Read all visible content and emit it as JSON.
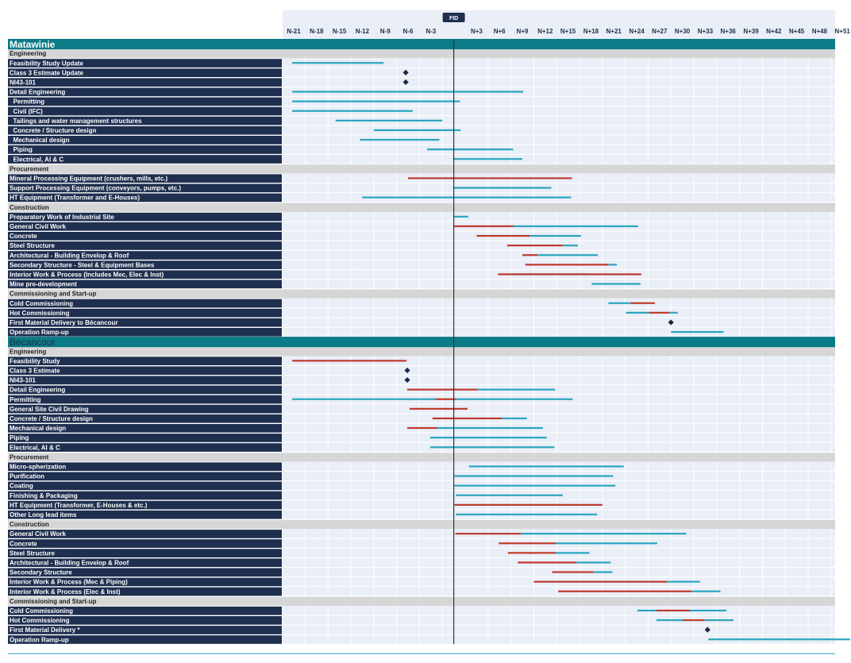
{
  "chart_data": {
    "type": "gantt",
    "axis_unit": "month relative to FID",
    "xlim": [
      -22,
      52
    ],
    "ticks": [
      {
        "v": -21,
        "label": "N-21"
      },
      {
        "v": -18,
        "label": "N-18"
      },
      {
        "v": -15,
        "label": "N-15"
      },
      {
        "v": -12,
        "label": "N-12"
      },
      {
        "v": -9,
        "label": "N-9"
      },
      {
        "v": -6,
        "label": "N-6"
      },
      {
        "v": -3,
        "label": "N-3"
      },
      {
        "v": 3,
        "label": "N+3"
      },
      {
        "v": 6,
        "label": "N+6"
      },
      {
        "v": 9,
        "label": "N+9"
      },
      {
        "v": 12,
        "label": "N+12"
      },
      {
        "v": 15,
        "label": "N+15"
      },
      {
        "v": 18,
        "label": "N+18"
      },
      {
        "v": 21,
        "label": "N+21"
      },
      {
        "v": 24,
        "label": "N+24"
      },
      {
        "v": 27,
        "label": "N+27"
      },
      {
        "v": 30,
        "label": "N+30"
      },
      {
        "v": 33,
        "label": "N+33"
      },
      {
        "v": 36,
        "label": "N+36"
      },
      {
        "v": 39,
        "label": "N+39"
      },
      {
        "v": 42,
        "label": "N+42"
      },
      {
        "v": 45,
        "label": "N+45"
      },
      {
        "v": 48,
        "label": "N+48"
      },
      {
        "v": 51,
        "label": "N+51"
      }
    ],
    "fid": {
      "label": "FID",
      "v": 0
    },
    "colors": {
      "header_band": "#0b7b87",
      "label_bg": "#1f2f4f",
      "category_bg": "#d6d6d6",
      "plot_bg": "#e9eef7",
      "grid": "#ffffff",
      "blue_bar": "#2aa5c0",
      "red_bar": "#c0392b",
      "milestone": "#1a2a45",
      "fid_badge": "#1f2f4f",
      "fid_line": "#333333"
    },
    "rows": [
      {
        "type": "section",
        "label": "Matawinie"
      },
      {
        "type": "category",
        "label": "Engineering"
      },
      {
        "type": "task",
        "label": "Feasibility Study Update",
        "bars": [
          {
            "c": "blue",
            "s": -21.2,
            "e": -9.2
          }
        ]
      },
      {
        "type": "task",
        "label": "Class 3 Estimate Update",
        "milestone": -6.3
      },
      {
        "type": "task",
        "label": "NI43-101",
        "milestone": -6.3
      },
      {
        "type": "task",
        "label": "Detail Engineering",
        "bars": [
          {
            "c": "blue",
            "s": -21.2,
            "e": 9.1
          }
        ]
      },
      {
        "type": "task",
        "label": "  Permitting",
        "bars": [
          {
            "c": "blue",
            "s": -21.2,
            "e": 0.8
          }
        ]
      },
      {
        "type": "task",
        "label": "  Civil (IFC)",
        "bars": [
          {
            "c": "blue",
            "s": -21.2,
            "e": -5.4
          }
        ]
      },
      {
        "type": "task",
        "label": "  Tailings and water management structures",
        "bars": [
          {
            "c": "blue",
            "s": -15.5,
            "e": -1.5
          }
        ]
      },
      {
        "type": "task",
        "label": "  Concrete / Structure design",
        "bars": [
          {
            "c": "blue",
            "s": -10.5,
            "e": 0.9
          }
        ]
      },
      {
        "type": "task",
        "label": "  Mechanical design",
        "bars": [
          {
            "c": "blue",
            "s": -12.3,
            "e": -1.9
          }
        ]
      },
      {
        "type": "task",
        "label": "  Piping",
        "bars": [
          {
            "c": "blue",
            "s": -3.5,
            "e": 7.8
          }
        ]
      },
      {
        "type": "task",
        "label": "  Electrical, AI & C",
        "bars": [
          {
            "c": "blue",
            "s": -0.1,
            "e": 9.0
          }
        ]
      },
      {
        "type": "category",
        "label": "Procurement"
      },
      {
        "type": "task",
        "label": "Mineral Processing Equipment (crushers, mills, etc.)",
        "bars": [
          {
            "c": "red",
            "s": -6.0,
            "e": 15.5
          }
        ]
      },
      {
        "type": "task",
        "label": "Support Processing Equipment (conveyors, pumps, etc.)",
        "bars": [
          {
            "c": "blue",
            "s": -0.1,
            "e": 12.8
          }
        ]
      },
      {
        "type": "task",
        "label": "HT Equipment (Transformer and E-Houses)",
        "bars": [
          {
            "c": "blue",
            "s": -12.0,
            "e": 15.4
          }
        ]
      },
      {
        "type": "category",
        "label": "Construction"
      },
      {
        "type": "task",
        "label": "Preparatory Work of Industrial Site",
        "bars": [
          {
            "c": "blue",
            "s": 0.0,
            "e": 1.9
          }
        ]
      },
      {
        "type": "task",
        "label": "General Civil Work",
        "bars": [
          {
            "c": "blue",
            "s": 7.8,
            "e": 24.2
          },
          {
            "c": "red",
            "s": 0.0,
            "e": 7.8
          }
        ]
      },
      {
        "type": "task",
        "label": "Concrete",
        "bars": [
          {
            "c": "blue",
            "s": 10.0,
            "e": 16.7
          },
          {
            "c": "red",
            "s": 3.0,
            "e": 10.0
          }
        ]
      },
      {
        "type": "task",
        "label": "Steel Structure",
        "bars": [
          {
            "c": "blue",
            "s": 14.3,
            "e": 16.3
          },
          {
            "c": "red",
            "s": 7.0,
            "e": 14.3
          }
        ]
      },
      {
        "type": "task",
        "label": "Architectural - Building Envelop & Roof",
        "bars": [
          {
            "c": "blue",
            "s": 11.0,
            "e": 18.9
          },
          {
            "c": "red",
            "s": 9.0,
            "e": 11.0
          }
        ]
      },
      {
        "type": "task",
        "label": "Secondary Structure - Steel & Equipment Bases",
        "bars": [
          {
            "c": "blue",
            "s": 20.3,
            "e": 21.4
          },
          {
            "c": "red",
            "s": 9.4,
            "e": 20.3
          }
        ]
      },
      {
        "type": "task",
        "label": "Interior Work & Process (Includes Mec, Elec & Inst)",
        "bars": [
          {
            "c": "blue",
            "s": 7.5,
            "e": 17.7
          },
          {
            "c": "red",
            "s": 5.8,
            "e": 24.6
          }
        ]
      },
      {
        "type": "task",
        "label": "Mine pre-development",
        "bars": [
          {
            "c": "blue",
            "s": 18.1,
            "e": 24.5
          }
        ]
      },
      {
        "type": "category",
        "label": "Commissioning and Start-up"
      },
      {
        "type": "task",
        "label": "Cold Commissioning",
        "bars": [
          {
            "c": "blue",
            "s": 20.3,
            "e": 23.2
          },
          {
            "c": "red",
            "s": 23.2,
            "e": 26.4
          }
        ]
      },
      {
        "type": "task",
        "label": "Hot Commissioning",
        "bars": [
          {
            "c": "blue",
            "s": 22.6,
            "e": 25.6
          },
          {
            "c": "red",
            "s": 25.6,
            "e": 28.3
          },
          {
            "c": "blue",
            "s": 28.3,
            "e": 29.4
          }
        ]
      },
      {
        "type": "task",
        "label": "First Material Delivery to Bécancour",
        "milestone": 28.5
      },
      {
        "type": "task",
        "label": "Operation Ramp-up",
        "bars": [
          {
            "c": "blue",
            "s": 28.5,
            "e": 35.4
          }
        ]
      },
      {
        "type": "section",
        "label": "Bécancour"
      },
      {
        "type": "category",
        "label": "Engineering"
      },
      {
        "type": "task",
        "label": "Feasibility Study",
        "bars": [
          {
            "c": "red",
            "s": -21.2,
            "e": -6.2
          }
        ]
      },
      {
        "type": "task",
        "label": "Class 3 Estimate",
        "milestone": -6.1
      },
      {
        "type": "task",
        "label": "NI43-101",
        "milestone": -6.1
      },
      {
        "type": "task",
        "label": "Detail Engineering",
        "bars": [
          {
            "c": "red",
            "s": -6.1,
            "e": 3.1
          },
          {
            "c": "blue",
            "s": 3.1,
            "e": 13.3
          }
        ]
      },
      {
        "type": "task",
        "label": "Permitting",
        "bars": [
          {
            "c": "blue",
            "s": -21.2,
            "e": -2.4
          },
          {
            "c": "red",
            "s": -2.4,
            "e": 0.3
          },
          {
            "c": "blue",
            "s": 0.3,
            "e": 15.6
          }
        ]
      },
      {
        "type": "task",
        "label": "General Site Civil Drawing",
        "bars": [
          {
            "c": "red",
            "s": -5.8,
            "e": 1.8
          }
        ]
      },
      {
        "type": "task",
        "label": "Concrete / Structure design",
        "bars": [
          {
            "c": "red",
            "s": -2.8,
            "e": 6.3
          },
          {
            "c": "blue",
            "s": 6.3,
            "e": 9.6
          }
        ]
      },
      {
        "type": "task",
        "label": "Mechanical design",
        "bars": [
          {
            "c": "red",
            "s": -6.1,
            "e": -2.2
          },
          {
            "c": "blue",
            "s": -2.2,
            "e": 11.7
          }
        ]
      },
      {
        "type": "task",
        "label": "Piping",
        "bars": [
          {
            "c": "blue",
            "s": -3.1,
            "e": 12.2
          }
        ]
      },
      {
        "type": "task",
        "label": "Electrical, AI & C",
        "bars": [
          {
            "c": "blue",
            "s": -3.1,
            "e": 13.2
          }
        ]
      },
      {
        "type": "category",
        "label": "Procurement"
      },
      {
        "type": "task",
        "label": "Micro-spherization",
        "bars": [
          {
            "c": "blue",
            "s": 2.0,
            "e": 22.3
          }
        ]
      },
      {
        "type": "task",
        "label": "Purification",
        "bars": [
          {
            "c": "blue",
            "s": 0.1,
            "e": 20.9
          }
        ]
      },
      {
        "type": "task",
        "label": "Coating",
        "bars": [
          {
            "c": "blue",
            "s": 0.1,
            "e": 21.2
          }
        ]
      },
      {
        "type": "task",
        "label": "Finishing & Packaging",
        "bars": [
          {
            "c": "blue",
            "s": 0.3,
            "e": 14.3
          }
        ]
      },
      {
        "type": "task",
        "label": "HT Equipment (Transformer, E-Houses & etc.)",
        "bars": [
          {
            "c": "red",
            "s": 0.1,
            "e": 19.5
          }
        ]
      },
      {
        "type": "task",
        "label": "Other Long lead items",
        "bars": [
          {
            "c": "blue",
            "s": 0.3,
            "e": 18.8
          }
        ]
      },
      {
        "type": "category",
        "label": "Construction"
      },
      {
        "type": "task",
        "label": "General Civil Work",
        "bars": [
          {
            "c": "red",
            "s": 0.2,
            "e": 8.8
          },
          {
            "c": "blue",
            "s": 8.8,
            "e": 30.5
          }
        ]
      },
      {
        "type": "task",
        "label": "Concrete",
        "bars": [
          {
            "c": "red",
            "s": 5.9,
            "e": 13.4
          },
          {
            "c": "blue",
            "s": 13.4,
            "e": 26.7
          }
        ]
      },
      {
        "type": "task",
        "label": "Steel Structure",
        "bars": [
          {
            "c": "red",
            "s": 7.1,
            "e": 13.4
          },
          {
            "c": "blue",
            "s": 13.4,
            "e": 17.8
          }
        ]
      },
      {
        "type": "task",
        "label": "Architectural - Building Envelop & Roof",
        "bars": [
          {
            "c": "red",
            "s": 8.4,
            "e": 16.1
          },
          {
            "c": "blue",
            "s": 16.1,
            "e": 20.6
          }
        ]
      },
      {
        "type": "task",
        "label": "Secondary Structure",
        "bars": [
          {
            "c": "red",
            "s": 12.9,
            "e": 18.3
          },
          {
            "c": "blue",
            "s": 18.3,
            "e": 20.8
          }
        ]
      },
      {
        "type": "task",
        "label": "Interior Work & Process (Mec & Piping)",
        "bars": [
          {
            "c": "red",
            "s": 10.5,
            "e": 28.0
          },
          {
            "c": "blue",
            "s": 28.0,
            "e": 32.3
          }
        ]
      },
      {
        "type": "task",
        "label": "Interior Work & Process (Elec & Inst)",
        "bars": [
          {
            "c": "red",
            "s": 13.7,
            "e": 31.2
          },
          {
            "c": "blue",
            "s": 31.2,
            "e": 35.0
          }
        ]
      },
      {
        "type": "category",
        "label": "Commissioning and Start-up"
      },
      {
        "type": "task",
        "label": "Cold Commissioning",
        "bars": [
          {
            "c": "blue",
            "s": 24.1,
            "e": 26.6
          },
          {
            "c": "red",
            "s": 26.6,
            "e": 31.0
          },
          {
            "c": "blue",
            "s": 31.0,
            "e": 35.8
          }
        ]
      },
      {
        "type": "task",
        "label": "Hot Commissioning",
        "bars": [
          {
            "c": "blue",
            "s": 26.6,
            "e": 30.1
          },
          {
            "c": "red",
            "s": 30.1,
            "e": 32.9
          },
          {
            "c": "blue",
            "s": 32.9,
            "e": 36.7
          }
        ]
      },
      {
        "type": "task",
        "label": "First Material Delivery *",
        "milestone": 33.3
      },
      {
        "type": "task",
        "label": "Operation Ramp-up",
        "bars": [
          {
            "c": "blue",
            "s": 33.4,
            "e": 52
          }
        ]
      }
    ]
  }
}
